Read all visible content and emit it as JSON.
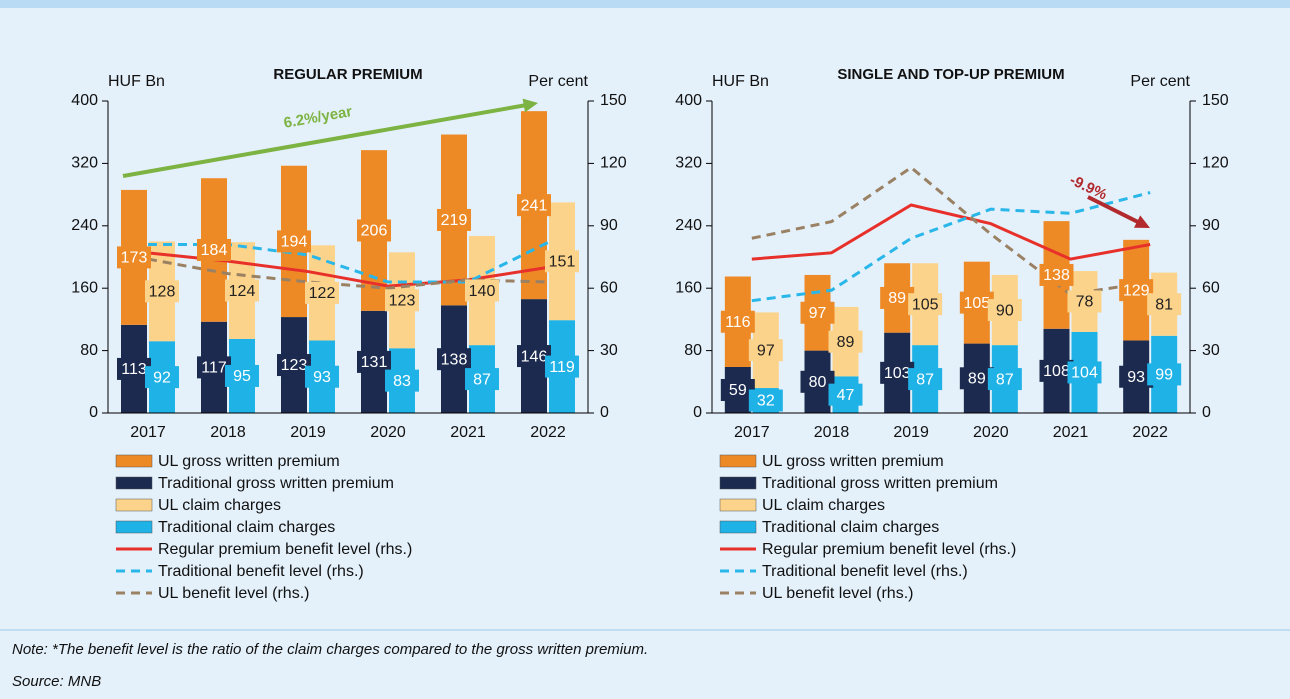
{
  "chart_data": [
    {
      "type": "bar",
      "title": "REGULAR PREMIUM",
      "y_label": "HUF Bn",
      "y2_label": "Per cent",
      "categories": [
        "2017",
        "2018",
        "2019",
        "2020",
        "2021",
        "2022"
      ],
      "ylim": [
        0,
        400
      ],
      "yticks": [
        0,
        80,
        160,
        240,
        320,
        400
      ],
      "y2lim": [
        0,
        150
      ],
      "y2ticks": [
        0,
        30,
        60,
        90,
        120,
        150
      ],
      "annotation": "6.2%/year",
      "annotation_color": "#7cb342",
      "series": [
        {
          "name": "UL gross written premium",
          "color": "#ee8a26",
          "stack": "gwp",
          "values": [
            173,
            184,
            194,
            206,
            219,
            241
          ]
        },
        {
          "name": "Traditional gross written premium",
          "color": "#1b2a4e",
          "stack": "gwp",
          "values": [
            113,
            117,
            123,
            131,
            138,
            146
          ]
        },
        {
          "name": "UL claim charges",
          "color": "#fcd38b",
          "stack": "claims",
          "values": [
            128,
            124,
            122,
            123,
            140,
            151
          ]
        },
        {
          "name": "Traditional claim charges",
          "color": "#1fb2e6",
          "stack": "claims",
          "values": [
            92,
            95,
            93,
            83,
            87,
            119
          ]
        },
        {
          "name": "Regular premium benefit level (rhs.)",
          "type": "line",
          "axis": "y2",
          "color": "#e8302a",
          "values": [
            77,
            73,
            68,
            61,
            64,
            70
          ]
        },
        {
          "name": "Traditional benefit level (rhs.)",
          "type": "line",
          "axis": "y2",
          "color": "#29b6e8",
          "dashed": true,
          "values": [
            81,
            81,
            76,
            63,
            63,
            82
          ]
        },
        {
          "name": "UL benefit level (rhs.)",
          "type": "line",
          "axis": "y2",
          "color": "#9a8163",
          "dashed": true,
          "values": [
            74,
            67,
            63,
            60,
            64,
            63
          ]
        }
      ]
    },
    {
      "type": "bar",
      "title": "SINGLE AND TOP-UP PREMIUM",
      "y_label": "HUF Bn",
      "y2_label": "Per cent",
      "categories": [
        "2017",
        "2018",
        "2019",
        "2020",
        "2021",
        "2022"
      ],
      "ylim": [
        0,
        400
      ],
      "yticks": [
        0,
        80,
        160,
        240,
        320,
        400
      ],
      "y2lim": [
        0,
        150
      ],
      "y2ticks": [
        0,
        30,
        60,
        90,
        120,
        150
      ],
      "annotation": "-9.9%",
      "annotation_color": "#b22a2e",
      "series": [
        {
          "name": "UL gross written premium",
          "color": "#ee8a26",
          "stack": "gwp",
          "values": [
            116,
            97,
            89,
            105,
            138,
            129
          ]
        },
        {
          "name": "Traditional gross written premium",
          "color": "#1b2a4e",
          "stack": "gwp",
          "values": [
            59,
            80,
            103,
            89,
            108,
            93
          ]
        },
        {
          "name": "UL claim charges",
          "color": "#fcd38b",
          "stack": "claims",
          "values": [
            97,
            89,
            105,
            90,
            78,
            81
          ]
        },
        {
          "name": "Traditional claim charges",
          "color": "#1fb2e6",
          "stack": "claims",
          "values": [
            32,
            47,
            87,
            87,
            104,
            99
          ]
        },
        {
          "name": "Regular premium benefit level (rhs.)",
          "type": "line",
          "axis": "y2",
          "color": "#e8302a",
          "values": [
            74,
            77,
            100,
            91,
            74,
            81
          ]
        },
        {
          "name": "Traditional benefit level (rhs.)",
          "type": "line",
          "axis": "y2",
          "color": "#29b6e8",
          "dashed": true,
          "values": [
            54,
            59,
            84,
            98,
            96,
            106
          ]
        },
        {
          "name": "UL benefit level (rhs.)",
          "type": "line",
          "axis": "y2",
          "color": "#9a8163",
          "dashed": true,
          "values": [
            84,
            92,
            118,
            86,
            57,
            63
          ]
        }
      ]
    }
  ],
  "note": "Note: *The benefit level is the ratio of the claim charges compared to the gross written premium.",
  "source": "Source: MNB"
}
